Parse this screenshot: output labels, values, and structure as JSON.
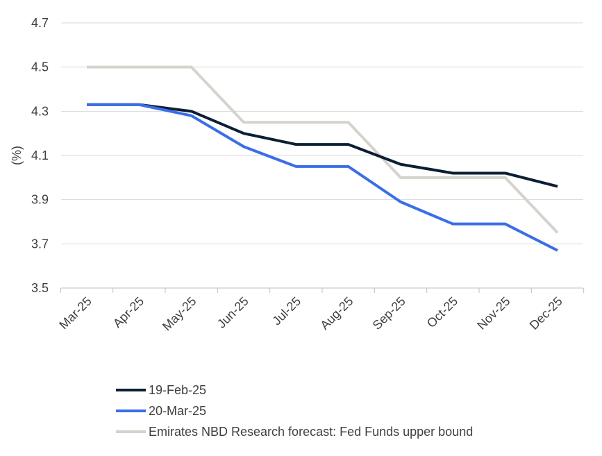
{
  "chart_data": {
    "type": "line",
    "ylabel": "(%)",
    "xlabel": "",
    "title": "",
    "ylim": [
      3.5,
      4.7
    ],
    "yticks": [
      "3.5",
      "3.7",
      "3.9",
      "4.1",
      "4.3",
      "4.5",
      "4.7"
    ],
    "grid": true,
    "legend_position": "bottom-left",
    "categories": [
      "Mar-25",
      "Apr-25",
      "May-25",
      "Jun-25",
      "Jul-25",
      "Aug-25",
      "Sep-25",
      "Oct-25",
      "Nov-25",
      "Dec-25"
    ],
    "series": [
      {
        "name": "Emirates NBD Research forecast: Fed Funds upper bound",
        "color": "#d6d2cc",
        "step": true,
        "values": [
          4.5,
          4.5,
          4.5,
          4.25,
          4.25,
          4.25,
          4.0,
          4.0,
          4.0,
          3.75
        ]
      },
      {
        "name": "19-Feb-25",
        "color": "#0c1e33",
        "step": false,
        "values": [
          4.33,
          4.33,
          4.3,
          4.2,
          4.15,
          4.15,
          4.06,
          4.02,
          4.02,
          3.96
        ]
      },
      {
        "name": "20-Mar-25",
        "color": "#3a6ee8",
        "step": false,
        "values": [
          4.33,
          4.33,
          4.28,
          4.14,
          4.05,
          4.05,
          3.89,
          3.79,
          3.79,
          3.67
        ]
      }
    ],
    "legend_order": [
      "19-Feb-25",
      "20-Mar-25",
      "Emirates NBD Research forecast: Fed Funds upper bound"
    ]
  }
}
